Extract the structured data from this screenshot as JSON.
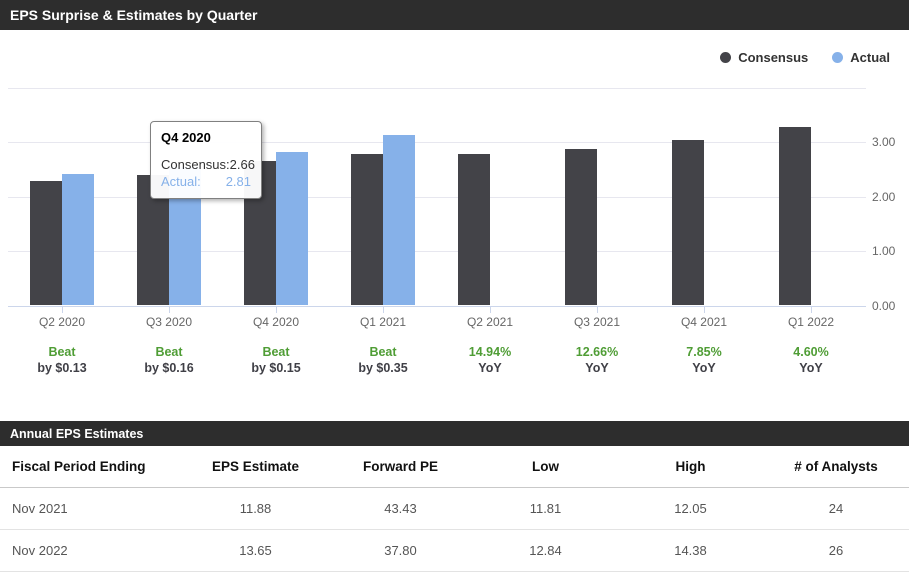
{
  "panel": {
    "title": "EPS Surprise & Estimates by Quarter"
  },
  "legend": [
    {
      "label": "Consensus",
      "color": "#434348"
    },
    {
      "label": "Actual",
      "color": "#86b1e9"
    }
  ],
  "chart_data": {
    "type": "bar",
    "title": "EPS Surprise & Estimates by Quarter",
    "categories": [
      "Q2 2020",
      "Q3 2020",
      "Q4 2020",
      "Q1 2021",
      "Q2 2021",
      "Q3 2021",
      "Q4 2021",
      "Q1 2022"
    ],
    "series": [
      {
        "name": "Consensus",
        "color": "#434348",
        "values": [
          2.29,
          2.39,
          2.66,
          2.78,
          2.78,
          2.87,
          3.03,
          3.27
        ]
      },
      {
        "name": "Actual",
        "color": "#86b1e9",
        "values": [
          2.42,
          2.55,
          2.81,
          3.13,
          null,
          null,
          null,
          null
        ]
      }
    ],
    "annotations": [
      {
        "line1": "Beat",
        "line2": "by $0.13"
      },
      {
        "line1": "Beat",
        "line2": "by $0.16"
      },
      {
        "line1": "Beat",
        "line2": "by $0.15"
      },
      {
        "line1": "Beat",
        "line2": "by $0.35"
      },
      {
        "line1": "14.94%",
        "line2": "YoY"
      },
      {
        "line1": "12.66%",
        "line2": "YoY"
      },
      {
        "line1": "7.85%",
        "line2": "YoY"
      },
      {
        "line1": "4.60%",
        "line2": "YoY"
      }
    ],
    "yticks": [
      "0.00",
      "1.00",
      "2.00",
      "3.00"
    ],
    "ylim": [
      0,
      4
    ],
    "grid": true,
    "legend_position": "top-right"
  },
  "tooltip": {
    "title": "Q4 2020",
    "rows": [
      {
        "label": "Consensus:",
        "value": "2.66"
      },
      {
        "label": "Actual:",
        "value": "2.81"
      }
    ]
  },
  "table": {
    "title": "Annual EPS Estimates",
    "columns": [
      "Fiscal Period Ending",
      "EPS Estimate",
      "Forward PE",
      "Low",
      "High",
      "# of Analysts"
    ],
    "rows": [
      [
        "Nov 2021",
        "11.88",
        "43.43",
        "11.81",
        "12.05",
        "24"
      ],
      [
        "Nov 2022",
        "13.65",
        "37.80",
        "12.84",
        "14.38",
        "26"
      ]
    ]
  },
  "colors": {
    "header_bg": "#2d2d2d",
    "consensus": "#434348",
    "actual": "#86b1e9",
    "annotation_green": "#4f9d35",
    "annotation_dark": "#3f3f46",
    "axis": "#ccd6eb",
    "gridline": "#e7e7ef"
  }
}
